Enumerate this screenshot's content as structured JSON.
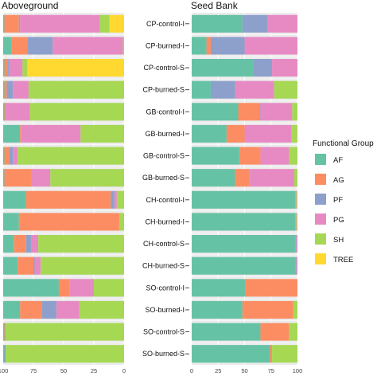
{
  "chart_data": {
    "type": "bar",
    "orientation": "horizontal",
    "stacked": true,
    "panels": [
      {
        "title": "Aboveground",
        "x_direction": "reversed",
        "xlim": [
          0,
          100
        ]
      },
      {
        "title": "Seed Bank",
        "x_direction": "normal",
        "xlim": [
          0,
          100
        ]
      }
    ],
    "x_ticks": [
      "100",
      "75",
      "50",
      "25",
      "0"
    ],
    "x_ticks_seed": [
      "0",
      "25",
      "50",
      "75",
      "100"
    ],
    "categories": [
      "CP-control-I",
      "CP-burned-I",
      "CP-control-S",
      "CP-burned-S",
      "GB-control-I",
      "GB-burned-I",
      "GB-control-S",
      "GB-burned-S",
      "CH-control-I",
      "CH-burned-I",
      "CH-control-S",
      "CH-burned-S",
      "SO-control-I",
      "SO-burned-I",
      "SO-control-S",
      "SO-burned-S"
    ],
    "legend": {
      "title": "Functional Group",
      "placement": "right",
      "entries": [
        "AF",
        "AG",
        "PF",
        "PG",
        "SH",
        "TREE"
      ]
    },
    "colors": {
      "AF": "#66c2a5",
      "AG": "#fc8d62",
      "PF": "#8da0cb",
      "PG": "#e78ac3",
      "SH": "#a6d854",
      "TREE": "#ffd92f",
      "panel_bg": "#ebebeb"
    },
    "aboveground": [
      {
        "AF": 1,
        "AG": 12,
        "PF": 1,
        "PG": 66,
        "SH": 8,
        "TREE": 12
      },
      {
        "AF": 7,
        "AG": 13,
        "PF": 21,
        "PG": 58,
        "SH": 1,
        "TREE": 0
      },
      {
        "AF": 1,
        "AG": 3,
        "PF": 1,
        "PG": 11,
        "SH": 4,
        "TREE": 80
      },
      {
        "AF": 1,
        "AG": 2,
        "PF": 5,
        "PG": 13,
        "SH": 79,
        "TREE": 0
      },
      {
        "AF": 1,
        "AG": 1,
        "PF": 0,
        "PG": 20,
        "SH": 78,
        "TREE": 0
      },
      {
        "AF": 14,
        "AG": 1,
        "PF": 0,
        "PG": 49,
        "SH": 36,
        "TREE": 0
      },
      {
        "AF": 1,
        "AG": 4,
        "PF": 3,
        "PG": 4,
        "SH": 88,
        "TREE": 0
      },
      {
        "AF": 1,
        "AG": 22,
        "PF": 0,
        "PG": 16,
        "SH": 61,
        "TREE": 0
      },
      {
        "AF": 19,
        "AG": 70,
        "PF": 3,
        "PG": 2,
        "SH": 6,
        "TREE": 0
      },
      {
        "AF": 13,
        "AG": 83,
        "PF": 0,
        "PG": 0,
        "SH": 4,
        "TREE": 0
      },
      {
        "AF": 9,
        "AG": 10,
        "PF": 4,
        "PG": 6,
        "SH": 71,
        "TREE": 0
      },
      {
        "AF": 12,
        "AG": 13,
        "PF": 1,
        "PG": 5,
        "SH": 69,
        "TREE": 0
      },
      {
        "AF": 46,
        "AG": 9,
        "PF": 0,
        "PG": 20,
        "SH": 25,
        "TREE": 0
      },
      {
        "AF": 14,
        "AG": 18,
        "PF": 12,
        "PG": 19,
        "SH": 37,
        "TREE": 0
      },
      {
        "AF": 1,
        "AG": 1,
        "PF": 0,
        "PG": 0,
        "SH": 98,
        "TREE": 0
      },
      {
        "AF": 1,
        "AG": 0,
        "PF": 1,
        "PG": 0,
        "SH": 98,
        "TREE": 0
      }
    ],
    "seed_bank": [
      {
        "AF": 48,
        "AG": 0,
        "PF": 24,
        "PG": 28,
        "SH": 0,
        "TREE": 0
      },
      {
        "AF": 14,
        "AG": 4,
        "PF": 32,
        "PG": 50,
        "SH": 0,
        "TREE": 0
      },
      {
        "AF": 58,
        "AG": 0,
        "PF": 18,
        "PG": 24,
        "SH": 0,
        "TREE": 0
      },
      {
        "AF": 18,
        "AG": 0,
        "PF": 23,
        "PG": 37,
        "SH": 22,
        "TREE": 0
      },
      {
        "AF": 44,
        "AG": 20,
        "PF": 1,
        "PG": 30,
        "SH": 5,
        "TREE": 0
      },
      {
        "AF": 33,
        "AG": 17,
        "PF": 0,
        "PG": 44,
        "SH": 6,
        "TREE": 0
      },
      {
        "AF": 45,
        "AG": 20,
        "PF": 0,
        "PG": 27,
        "SH": 8,
        "TREE": 0
      },
      {
        "AF": 41,
        "AG": 14,
        "PF": 0,
        "PG": 42,
        "SH": 3,
        "TREE": 0
      },
      {
        "AF": 98,
        "AG": 0,
        "PF": 0,
        "PG": 1,
        "SH": 1,
        "TREE": 0
      },
      {
        "AF": 98,
        "AG": 0,
        "PF": 0,
        "PG": 1,
        "SH": 1,
        "TREE": 0
      },
      {
        "AF": 98,
        "AG": 0,
        "PF": 1,
        "PG": 1,
        "SH": 0,
        "TREE": 0
      },
      {
        "AF": 98,
        "AG": 0,
        "PF": 1,
        "PG": 1,
        "SH": 0,
        "TREE": 0
      },
      {
        "AF": 51,
        "AG": 49,
        "PF": 0,
        "PG": 0,
        "SH": 0,
        "TREE": 0
      },
      {
        "AF": 48,
        "AG": 48,
        "PF": 0,
        "PG": 0,
        "SH": 4,
        "TREE": 0
      },
      {
        "AF": 65,
        "AG": 27,
        "PF": 0,
        "PG": 0,
        "SH": 8,
        "TREE": 0
      },
      {
        "AF": 74,
        "AG": 2,
        "PF": 0,
        "PG": 0,
        "SH": 24,
        "TREE": 0
      }
    ]
  }
}
